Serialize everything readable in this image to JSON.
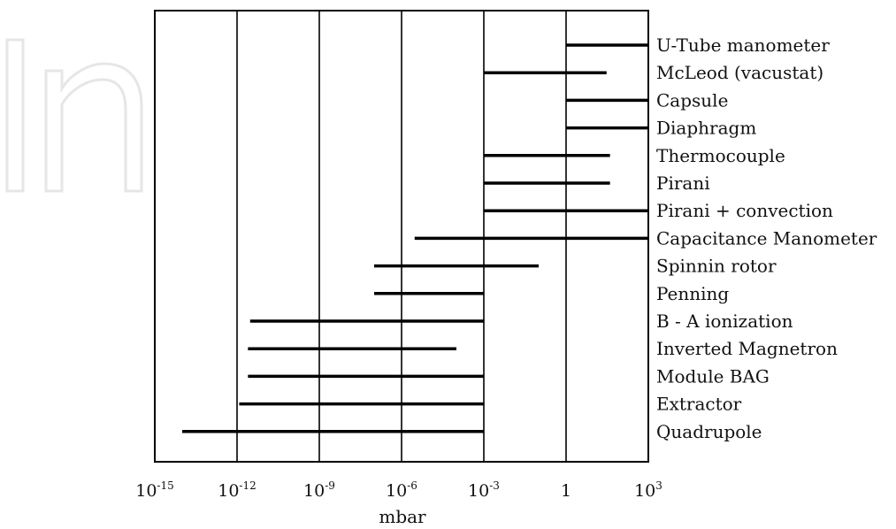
{
  "chart_data": {
    "type": "range-bar",
    "title": "",
    "xlabel": "mbar",
    "ylabel": "",
    "x_scale": "log",
    "x_ticks": [
      {
        "value": 1e-15,
        "base": "10",
        "exp": "-15"
      },
      {
        "value": 1e-12,
        "base": "10",
        "exp": "-12"
      },
      {
        "value": 1e-09,
        "base": "10",
        "exp": "-9"
      },
      {
        "value": 1e-06,
        "base": "10",
        "exp": "-6"
      },
      {
        "value": 0.001,
        "base": "10",
        "exp": "-3"
      },
      {
        "value": 1,
        "base": "1",
        "exp": ""
      },
      {
        "value": 1000.0,
        "base": "10",
        "exp": "3"
      }
    ],
    "xlim": [
      1e-15,
      1000.0
    ],
    "grid": "vertical",
    "categories": [
      {
        "label": "U-Tube manometer",
        "low": 1,
        "high": 1000
      },
      {
        "label": "McLeod (vacustat)",
        "low": 0.001,
        "high": 30
      },
      {
        "label": "Capsule",
        "low": 1,
        "high": 1000
      },
      {
        "label": "Diaphragm",
        "low": 1,
        "high": 1000
      },
      {
        "label": "Thermocouple",
        "low": 0.001,
        "high": 40
      },
      {
        "label": "Pirani",
        "low": 0.001,
        "high": 40
      },
      {
        "label": "Pirani + convection",
        "low": 0.001,
        "high": 1000
      },
      {
        "label": "Capacitance Manometer",
        "low": 3e-06,
        "high": 1000
      },
      {
        "label": "Spinnin rotor",
        "low": 1e-07,
        "high": 0.1
      },
      {
        "label": "Penning",
        "low": 1e-07,
        "high": 0.001
      },
      {
        "label": "B - A ionization",
        "low": 3e-12,
        "high": 0.001
      },
      {
        "label": "Inverted Magnetron",
        "low": 2.5e-12,
        "high": 0.0001
      },
      {
        "label": "Module BAG",
        "low": 2.5e-12,
        "high": 0.001
      },
      {
        "label": "Extractor",
        "low": 1.2e-12,
        "high": 0.001
      },
      {
        "label": "Quadrupole",
        "low": 1e-14,
        "high": 0.001
      }
    ]
  }
}
